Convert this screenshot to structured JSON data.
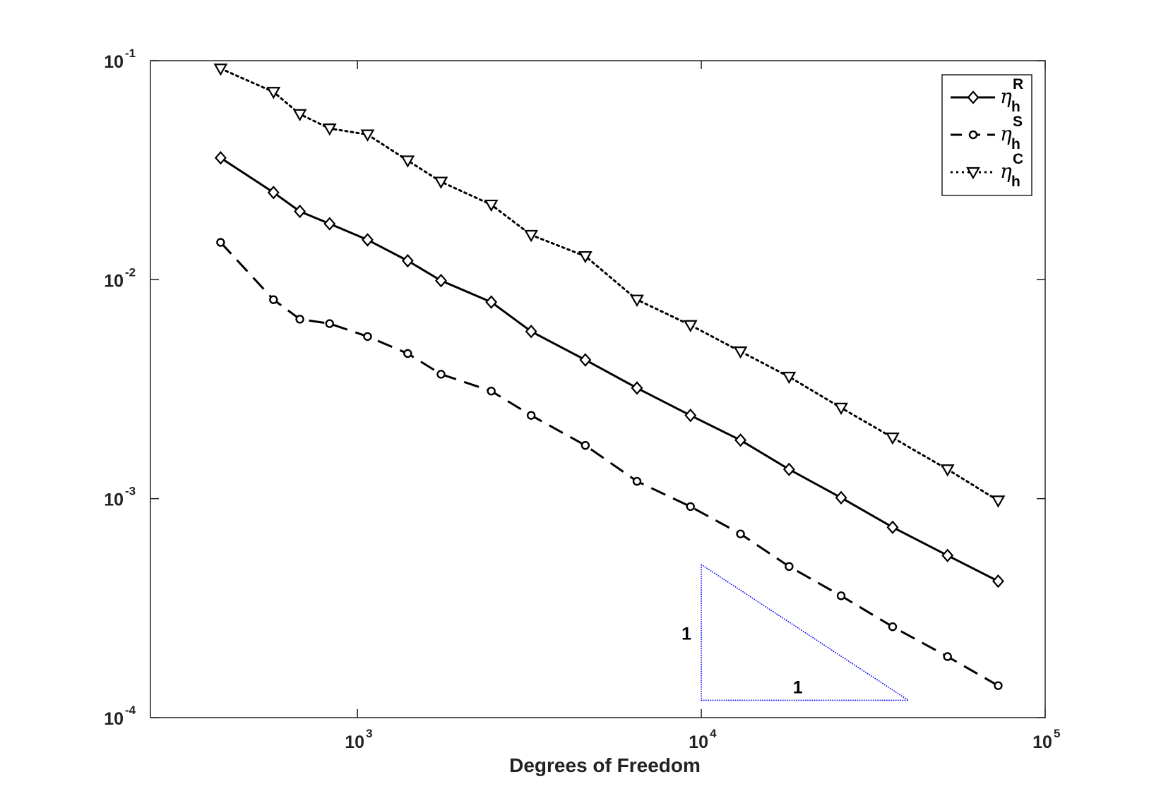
{
  "chart_data": {
    "type": "line",
    "xscale": "log",
    "yscale": "log",
    "xlabel": "Degrees of Freedom",
    "ylabel": "",
    "xlim": [
      250,
      100000
    ],
    "ylim": [
      0.0001,
      0.1
    ],
    "x_ticks": [
      {
        "value": 1000,
        "base": "10",
        "exp": "3"
      },
      {
        "value": 10000,
        "base": "10",
        "exp": "4"
      },
      {
        "value": 100000,
        "base": "10",
        "exp": "5"
      }
    ],
    "y_ticks": [
      {
        "value": 0.1,
        "base": "10",
        "exp": "-1"
      },
      {
        "value": 0.01,
        "base": "10",
        "exp": "-2"
      },
      {
        "value": 0.001,
        "base": "10",
        "exp": "-3"
      },
      {
        "value": 0.0001,
        "base": "10",
        "exp": "-4"
      }
    ],
    "x": [
      400,
      570,
      680,
      830,
      1070,
      1400,
      1750,
      2450,
      3200,
      4600,
      6500,
      9300,
      13000,
      18000,
      25500,
      36000,
      52000,
      73000
    ],
    "series": [
      {
        "key": "R",
        "legend_symbol": "η",
        "legend_sub": "h",
        "legend_sup": "R",
        "line_style": "solid",
        "marker": "diamond",
        "color": "#000000",
        "values": [
          0.036,
          0.025,
          0.0205,
          0.018,
          0.0152,
          0.0122,
          0.0099,
          0.0079,
          0.0058,
          0.0043,
          0.0032,
          0.0024,
          0.00185,
          0.00136,
          0.00101,
          0.00074,
          0.00055,
          0.00042
        ]
      },
      {
        "key": "S",
        "legend_symbol": "η",
        "legend_sub": "h",
        "legend_sup": "S",
        "line_style": "dashed",
        "marker": "circle",
        "color": "#000000",
        "values": [
          0.0148,
          0.0081,
          0.0066,
          0.0063,
          0.0055,
          0.0046,
          0.0037,
          0.0031,
          0.0024,
          0.00175,
          0.0012,
          0.00092,
          0.00069,
          0.00049,
          0.00036,
          0.00026,
          0.00019,
          0.00014
        ]
      },
      {
        "key": "C",
        "legend_symbol": "η",
        "legend_sub": "h",
        "legend_sup": "C",
        "line_style": "dotted",
        "marker": "triangle-down",
        "color": "#000000",
        "values": [
          0.092,
          0.072,
          0.057,
          0.049,
          0.046,
          0.035,
          0.028,
          0.022,
          0.016,
          0.0128,
          0.0081,
          0.0062,
          0.0047,
          0.0036,
          0.0026,
          0.0019,
          0.00136,
          0.00098
        ]
      }
    ],
    "slope_triangle": {
      "color": "#0000ff",
      "corner_x": 10000,
      "corner_y": 0.00012,
      "top_y": 0.0005,
      "right_x": 40000,
      "rise_label": "1",
      "run_label": "1"
    },
    "legend_position": "top-right",
    "grid": false
  }
}
